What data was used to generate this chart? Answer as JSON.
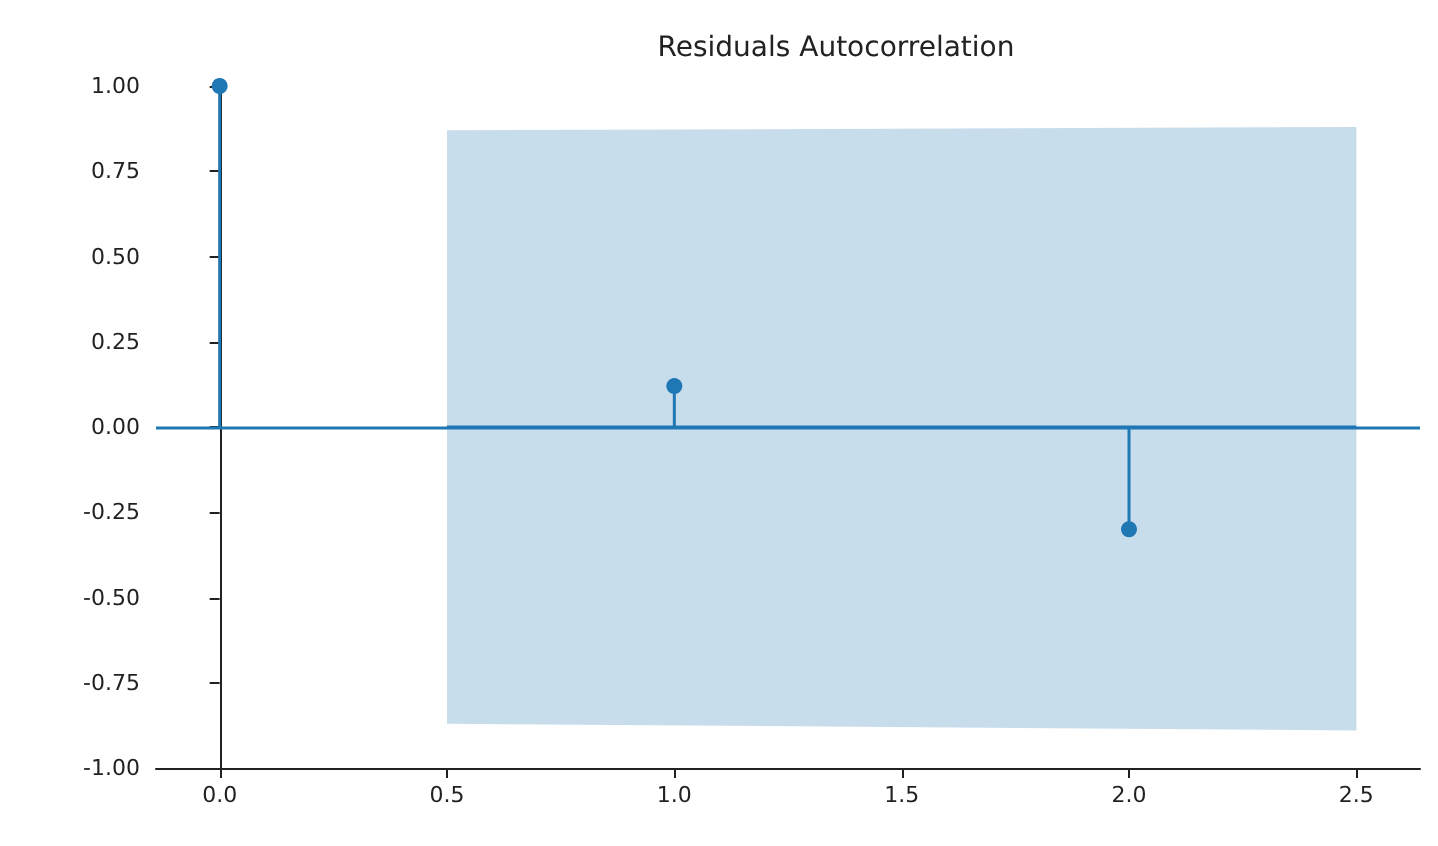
{
  "chart_data": {
    "type": "lollipop",
    "title": "Residuals Autocorrelation",
    "x": [
      0,
      1,
      2
    ],
    "series": [
      {
        "values": [
          1.0,
          0.12,
          -0.3
        ],
        "color": "#1f77b4"
      },
      {
        "type": "line",
        "x": [
          0.5,
          2.5
        ],
        "values": [
          0,
          0
        ],
        "lower": [
          -0.87,
          -0.89
        ],
        "upper": [
          0.87,
          0.88
        ],
        "color": "#1f77b4",
        "marker": "none"
      }
    ],
    "marker": "circle",
    "xlim": [
      -0.14,
      2.64
    ],
    "ylim": [
      -1,
      1
    ],
    "xticks": [
      {
        "value": 0,
        "label": "0.0"
      },
      {
        "value": 0.5,
        "label": "0.5"
      },
      {
        "value": 1,
        "label": "1.0"
      },
      {
        "value": 1.5,
        "label": "1.5"
      },
      {
        "value": 2,
        "label": "2.0"
      },
      {
        "value": 2.5,
        "label": "2.5"
      }
    ],
    "yticks": [
      {
        "value": -1,
        "label": "-1.00"
      },
      {
        "value": -0.75,
        "label": "-0.75"
      },
      {
        "value": -0.5,
        "label": "-0.50"
      },
      {
        "value": -0.25,
        "label": "-0.25"
      },
      {
        "value": 0,
        "label": "0.00"
      },
      {
        "value": 0.25,
        "label": "0.25"
      },
      {
        "value": 0.5,
        "label": "0.50"
      },
      {
        "value": 0.75,
        "label": "0.75"
      },
      {
        "value": 1,
        "label": "1.00"
      }
    ],
    "ref_lines": [
      {
        "axis": "y",
        "value": 0,
        "color": "#1f77b4"
      }
    ]
  }
}
